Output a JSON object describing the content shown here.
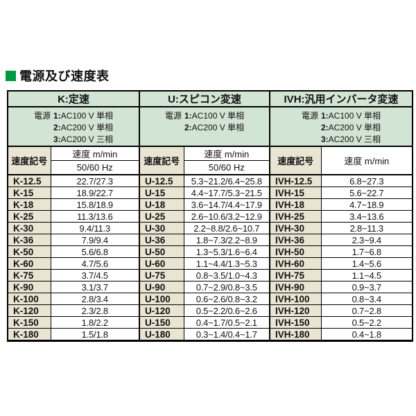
{
  "title": "電源及び速度表",
  "colors": {
    "accent_green": "#009944",
    "cell_green": "#d2e4d4",
    "cell_beige": "#eae4d3"
  },
  "table": {
    "symbol_header": "速度記号",
    "speed_header": "速度 m/min",
    "hz_subheader": "50/60 Hz",
    "power_label": "電源",
    "sections": [
      {
        "key": "K",
        "title": "K:定速",
        "power_lines": [
          "1:AC100 V 単相",
          "2:AC200 V 単相",
          "3:AC200 V 三相"
        ],
        "rows": [
          {
            "sym": "K-12.5",
            "val": "22.7/27.3"
          },
          {
            "sym": "K-15",
            "val": "18.9/22.7"
          },
          {
            "sym": "K-18",
            "val": "15.8/18.9"
          },
          {
            "sym": "K-25",
            "val": "11.3/13.6"
          },
          {
            "sym": "K-30",
            "val": "9.4/11.3"
          },
          {
            "sym": "K-36",
            "val": "7.9/9.4"
          },
          {
            "sym": "K-50",
            "val": "5.6/6.8"
          },
          {
            "sym": "K-60",
            "val": "4.7/5.6"
          },
          {
            "sym": "K-75",
            "val": "3.7/4.5"
          },
          {
            "sym": "K-90",
            "val": "3.1/3.7"
          },
          {
            "sym": "K-100",
            "val": "2.8/3.4"
          },
          {
            "sym": "K-120",
            "val": "2.3/2.8"
          },
          {
            "sym": "K-150",
            "val": "1.8/2.2"
          },
          {
            "sym": "K-180",
            "val": "1.5/1.8"
          }
        ]
      },
      {
        "key": "U",
        "title": "U:スピコン変速",
        "power_lines": [
          "1:AC100 V 単相",
          "2:AC200 V 単相"
        ],
        "rows": [
          {
            "sym": "U-12.5",
            "val": "5.3~21.2/6.4~25.8"
          },
          {
            "sym": "U-15",
            "val": "4.4~17.7/5.3~21.5"
          },
          {
            "sym": "U-18",
            "val": "3.6~14.7/4.4~17.9"
          },
          {
            "sym": "U-25",
            "val": "2.6~10.6/3.2~12.9"
          },
          {
            "sym": "U-30",
            "val": "2.2~8.8/2.6~10.7"
          },
          {
            "sym": "U-36",
            "val": "1.8~7.3/2.2~8.9"
          },
          {
            "sym": "U-50",
            "val": "1.3~5.3/1.6~6.4"
          },
          {
            "sym": "U-60",
            "val": "1.1~4.4/1.3~5.3"
          },
          {
            "sym": "U-75",
            "val": "0.8~3.5/1.0~4.3"
          },
          {
            "sym": "U-90",
            "val": "0.7~2.9/0.8~3.5"
          },
          {
            "sym": "U-100",
            "val": "0.6~2.6/0.8~3.2"
          },
          {
            "sym": "U-120",
            "val": "0.5~2.2/0.6~2.6"
          },
          {
            "sym": "U-150",
            "val": "0.4~1.7/0.5~2.1"
          },
          {
            "sym": "U-180",
            "val": "0.3~1.4/0.4~1.7"
          }
        ]
      },
      {
        "key": "IVH",
        "title": "IVH:汎用インバータ変速",
        "power_lines": [
          "1:AC100 V 単相",
          "2:AC200 V 単相",
          "3:AC200 V 三相"
        ],
        "rows": [
          {
            "sym": "IVH-12.5",
            "val": "6.8~27.3"
          },
          {
            "sym": "IVH-15",
            "val": "5.6~22.7"
          },
          {
            "sym": "IVH-18",
            "val": "4.7~18.9"
          },
          {
            "sym": "IVH-25",
            "val": "3.4~13.6"
          },
          {
            "sym": "IVH-30",
            "val": "2.8~11.3"
          },
          {
            "sym": "IVH-36",
            "val": "2.3~9.4"
          },
          {
            "sym": "IVH-50",
            "val": "1.7~6.8"
          },
          {
            "sym": "IVH-60",
            "val": "1.4~5.6"
          },
          {
            "sym": "IVH-75",
            "val": "1.1~4.5"
          },
          {
            "sym": "IVH-90",
            "val": "0.9~3.7"
          },
          {
            "sym": "IVH-100",
            "val": "0.8~3.4"
          },
          {
            "sym": "IVH-120",
            "val": "0.7~2.8"
          },
          {
            "sym": "IVH-150",
            "val": "0.5~2.2"
          },
          {
            "sym": "IVH-180",
            "val": "0.4~1.8"
          }
        ]
      }
    ]
  }
}
